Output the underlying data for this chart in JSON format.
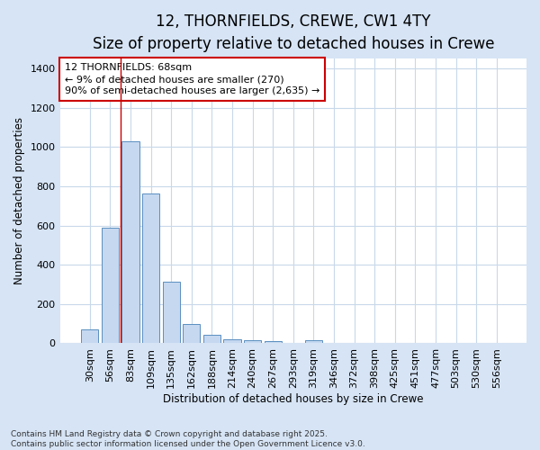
{
  "title_line1": "12, THORNFIELDS, CREWE, CW1 4TY",
  "title_line2": "Size of property relative to detached houses in Crewe",
  "xlabel": "Distribution of detached houses by size in Crewe",
  "ylabel": "Number of detached properties",
  "categories": [
    "30sqm",
    "56sqm",
    "83sqm",
    "109sqm",
    "135sqm",
    "162sqm",
    "188sqm",
    "214sqm",
    "240sqm",
    "267sqm",
    "293sqm",
    "319sqm",
    "346sqm",
    "372sqm",
    "398sqm",
    "425sqm",
    "451sqm",
    "477sqm",
    "503sqm",
    "530sqm",
    "556sqm"
  ],
  "values": [
    70,
    590,
    1030,
    765,
    315,
    100,
    45,
    22,
    15,
    10,
    0,
    15,
    0,
    0,
    0,
    0,
    0,
    0,
    0,
    0,
    0
  ],
  "bar_color": "#c5d8f0",
  "bar_edge_color": "#5a8fc0",
  "vline_x": 1.5,
  "vline_color": "#cc0000",
  "annotation_text": "12 THORNFIELDS: 68sqm\n← 9% of detached houses are smaller (270)\n90% of semi-detached houses are larger (2,635) →",
  "annotation_box_color": "#ffffff",
  "annotation_box_edge": "#cc0000",
  "ylim": [
    0,
    1450
  ],
  "yticks": [
    0,
    200,
    400,
    600,
    800,
    1000,
    1200,
    1400
  ],
  "fig_background_color": "#d6e4f5",
  "plot_bg_color": "#ffffff",
  "grid_color": "#c8d8ea",
  "footer_text": "Contains HM Land Registry data © Crown copyright and database right 2025.\nContains public sector information licensed under the Open Government Licence v3.0.",
  "title_fontsize": 12,
  "subtitle_fontsize": 10,
  "axis_label_fontsize": 8.5,
  "tick_fontsize": 8,
  "annotation_fontsize": 8
}
